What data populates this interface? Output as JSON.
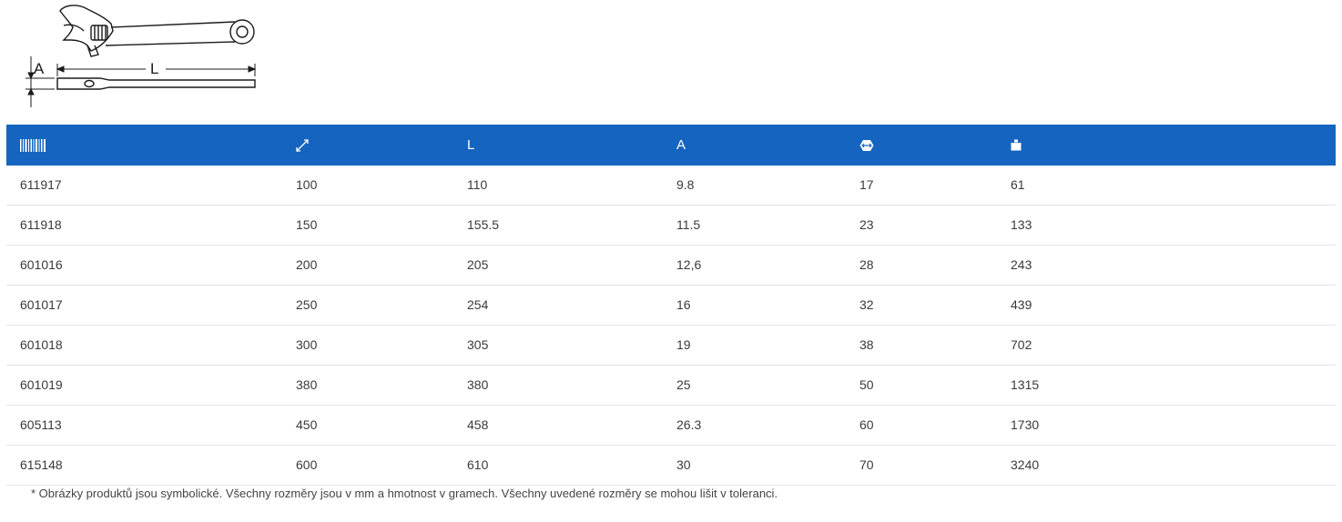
{
  "drawing": {
    "label_a": "A",
    "label_l": "L"
  },
  "table": {
    "header_icons": [
      "barcode-icon",
      "size-diagonal-icon",
      "L",
      "A",
      "jaw-opening-icon",
      "weight-icon"
    ],
    "header_text": {
      "length": "L",
      "height": "A"
    },
    "rows": [
      [
        "611917",
        "100",
        "110",
        "9.8",
        "17",
        "61"
      ],
      [
        "611918",
        "150",
        "155.5",
        "11.5",
        "23",
        "133"
      ],
      [
        "601016",
        "200",
        "205",
        "12,6",
        "28",
        "243"
      ],
      [
        "601017",
        "250",
        "254",
        "16",
        "32",
        "439"
      ],
      [
        "601018",
        "300",
        "305",
        "19",
        "38",
        "702"
      ],
      [
        "601019",
        "380",
        "380",
        "25",
        "50",
        "1315"
      ],
      [
        "605113",
        "450",
        "458",
        "26.3",
        "60",
        "1730"
      ],
      [
        "615148",
        "600",
        "610",
        "30",
        "70",
        "3240"
      ]
    ]
  },
  "footnote": "* Obrázky produktů jsou symbolické. Všechny rozměry jsou v mm a hmotnost v gramech. Všechny uvedené rozměry se mohou lišit v toleranci.",
  "colors": {
    "header_bg": "#1565c0",
    "header_text": "#ffffff",
    "row_border": "#e3e3e3"
  }
}
